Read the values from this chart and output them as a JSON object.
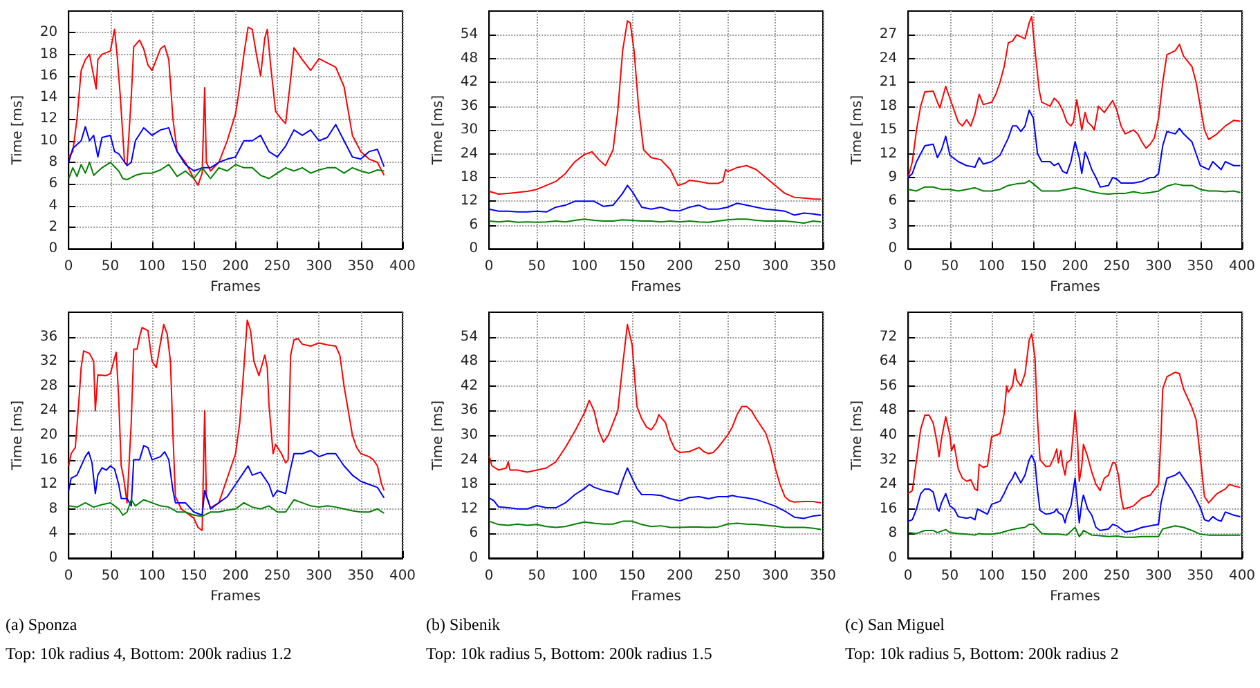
{
  "chart_data": [
    {
      "type": "line",
      "xlabel": "Frames",
      "ylabel": "Time [ms]",
      "xlim": [
        0,
        400
      ],
      "xticks": [
        0,
        50,
        100,
        150,
        200,
        250,
        300,
        350,
        400
      ],
      "ylim": [
        0,
        22
      ],
      "yticks": [
        0,
        2,
        4,
        6,
        8,
        10,
        12,
        14,
        16,
        18,
        20
      ],
      "grid": true,
      "series": [
        {
          "color": "#ff0000",
          "x": [
            0,
            5,
            10,
            15,
            20,
            25,
            30,
            33,
            35,
            40,
            50,
            55,
            58,
            62,
            67,
            70,
            75,
            78,
            85,
            90,
            95,
            100,
            110,
            115,
            120,
            125,
            130,
            140,
            150,
            155,
            160,
            163,
            165,
            170,
            180,
            190,
            200,
            205,
            210,
            215,
            220,
            225,
            230,
            235,
            238,
            242,
            248,
            255,
            260,
            265,
            270,
            280,
            290,
            300,
            310,
            320,
            330,
            340,
            350,
            360,
            370,
            378
          ],
          "values": [
            8.5,
            9,
            12,
            16.5,
            17.5,
            18,
            16,
            14.8,
            17.5,
            18,
            18.3,
            20.3,
            18,
            14,
            8,
            7.8,
            14,
            18.7,
            19.3,
            18.5,
            17,
            16.5,
            18.5,
            18.8,
            17.5,
            12,
            9,
            8,
            6.5,
            5.9,
            7,
            14.9,
            8,
            7.2,
            8,
            10,
            12.5,
            15,
            18,
            20.5,
            20.3,
            18,
            16,
            19.5,
            20.3,
            17,
            12.7,
            12,
            11.6,
            15,
            18.6,
            17.5,
            16.5,
            17.6,
            17.2,
            16.8,
            15,
            10.5,
            9,
            8.3,
            8,
            6.8
          ]
        },
        {
          "color": "#0000ff",
          "x": [
            0,
            5,
            15,
            20,
            25,
            30,
            35,
            40,
            50,
            55,
            60,
            70,
            75,
            80,
            90,
            100,
            110,
            120,
            125,
            130,
            140,
            150,
            160,
            170,
            180,
            190,
            200,
            210,
            220,
            230,
            240,
            250,
            260,
            270,
            280,
            290,
            300,
            310,
            320,
            330,
            340,
            350,
            360,
            370,
            378
          ],
          "values": [
            8,
            9.3,
            10,
            11.3,
            10,
            10.5,
            8.5,
            10.3,
            10.5,
            9,
            8.8,
            7.7,
            8,
            10,
            11.2,
            10.5,
            11,
            11.2,
            10,
            9,
            7.8,
            7.2,
            7.5,
            7.5,
            8,
            8.3,
            8.5,
            10,
            10,
            10.5,
            9,
            8.5,
            9.5,
            11,
            10.5,
            11,
            10,
            10.3,
            11.5,
            10,
            8.5,
            8.3,
            9,
            9.2,
            7.6
          ]
        },
        {
          "color": "#008000",
          "x": [
            0,
            5,
            10,
            15,
            20,
            25,
            30,
            40,
            50,
            60,
            65,
            70,
            80,
            90,
            100,
            110,
            120,
            130,
            140,
            150,
            160,
            170,
            180,
            190,
            200,
            210,
            220,
            230,
            240,
            250,
            260,
            270,
            280,
            290,
            300,
            310,
            320,
            330,
            340,
            350,
            360,
            370,
            378
          ],
          "values": [
            6.5,
            7.5,
            6.7,
            7.8,
            7,
            8,
            6.8,
            7.5,
            8,
            7.2,
            6.5,
            6.4,
            6.8,
            7,
            7,
            7.3,
            7.8,
            6.7,
            7.2,
            6.5,
            7.5,
            6.5,
            7.5,
            7.2,
            7.8,
            7.5,
            7.5,
            6.8,
            6.5,
            7,
            7.5,
            7.2,
            7.5,
            7,
            7.3,
            7.5,
            7.5,
            7,
            7.5,
            7.2,
            7,
            7.3,
            7.2
          ]
        }
      ]
    },
    {
      "type": "line",
      "xlabel": "Frames",
      "ylabel": "Time [ms]",
      "xlim": [
        0,
        350
      ],
      "xticks": [
        0,
        50,
        100,
        150,
        200,
        250,
        300,
        350
      ],
      "ylim": [
        0,
        60
      ],
      "yticks": [
        0,
        6,
        12,
        18,
        24,
        30,
        36,
        42,
        48,
        54
      ],
      "grid": true,
      "series": [
        {
          "color": "#ff0000",
          "x": [
            0,
            10,
            20,
            40,
            50,
            60,
            70,
            80,
            90,
            100,
            108,
            115,
            122,
            130,
            135,
            140,
            145,
            148,
            152,
            157,
            162,
            170,
            180,
            190,
            198,
            205,
            210,
            220,
            230,
            240,
            245,
            248,
            250,
            260,
            270,
            280,
            290,
            300,
            310,
            320,
            330,
            340,
            348
          ],
          "values": [
            14.5,
            13.8,
            14,
            14.5,
            15,
            16,
            17,
            19,
            22,
            23.8,
            24.5,
            22.5,
            21,
            25,
            35,
            50,
            57.5,
            57,
            50,
            35,
            25,
            23,
            22.5,
            20,
            16,
            16.5,
            17.3,
            17,
            16.5,
            16.5,
            17,
            20,
            19.5,
            20.5,
            21,
            20,
            18,
            16,
            14,
            13,
            12.8,
            12.6,
            12.5
          ]
        },
        {
          "color": "#0000ff",
          "x": [
            0,
            10,
            20,
            30,
            40,
            50,
            60,
            70,
            80,
            90,
            100,
            110,
            120,
            130,
            140,
            145,
            150,
            160,
            170,
            180,
            190,
            200,
            210,
            220,
            230,
            240,
            250,
            260,
            270,
            280,
            290,
            300,
            310,
            320,
            330,
            340,
            348
          ],
          "values": [
            10,
            9.5,
            9.5,
            9.3,
            9.3,
            9.5,
            9.3,
            10.5,
            11,
            12,
            12,
            12,
            10.7,
            11,
            14,
            16,
            14.5,
            10.5,
            10,
            10.5,
            9.7,
            9.6,
            10.5,
            11,
            10,
            10,
            10.5,
            11.5,
            11,
            10.5,
            10,
            9.8,
            9.5,
            8.5,
            9,
            8.8,
            8.5
          ]
        },
        {
          "color": "#008000",
          "x": [
            0,
            10,
            20,
            30,
            40,
            50,
            60,
            70,
            80,
            90,
            100,
            110,
            120,
            130,
            140,
            150,
            160,
            170,
            180,
            190,
            200,
            210,
            220,
            230,
            240,
            250,
            260,
            270,
            280,
            290,
            300,
            310,
            320,
            330,
            340,
            348
          ],
          "values": [
            7,
            6.8,
            7,
            6.7,
            6.8,
            6.7,
            6.8,
            7,
            6.8,
            7.2,
            7.5,
            7.2,
            7,
            7,
            7.3,
            7.2,
            7,
            7,
            6.8,
            7,
            6.8,
            7,
            6.8,
            6.7,
            7,
            7.3,
            7.5,
            7.5,
            7.2,
            7,
            7,
            7,
            6.8,
            6.5,
            7,
            6.8
          ]
        }
      ]
    },
    {
      "type": "line",
      "xlabel": "Frames",
      "ylabel": "Time [ms]",
      "xlim": [
        0,
        400
      ],
      "xticks": [
        0,
        50,
        100,
        150,
        200,
        250,
        300,
        350,
        400
      ],
      "ylim": [
        0,
        30
      ],
      "yticks": [
        0,
        3,
        6,
        9,
        12,
        15,
        18,
        21,
        24,
        27
      ],
      "grid": true,
      "series": [
        {
          "color": "#ff0000",
          "x": [
            0,
            5,
            10,
            15,
            20,
            30,
            35,
            38,
            45,
            50,
            55,
            60,
            65,
            70,
            75,
            80,
            85,
            90,
            100,
            105,
            110,
            115,
            120,
            125,
            130,
            140,
            145,
            148,
            152,
            157,
            160,
            170,
            175,
            180,
            185,
            190,
            195,
            198,
            202,
            205,
            208,
            212,
            215,
            220,
            223,
            228,
            235,
            245,
            250,
            255,
            260,
            270,
            275,
            280,
            285,
            290,
            295,
            300,
            305,
            310,
            320,
            325,
            330,
            340,
            345,
            350,
            355,
            360,
            370,
            380,
            390,
            398
          ],
          "values": [
            9,
            11,
            15,
            18,
            19.8,
            19.9,
            18.5,
            17.8,
            20.5,
            19,
            17.5,
            16,
            15.5,
            16.3,
            15.5,
            17,
            19.5,
            18.2,
            18.5,
            19.5,
            21,
            23,
            26,
            26.2,
            27,
            26.5,
            28.5,
            29.3,
            25,
            20,
            18.5,
            18,
            19,
            18.5,
            17.5,
            16,
            15.5,
            16,
            18.8,
            17,
            15,
            17.2,
            16,
            15.5,
            15,
            18,
            17.2,
            18.7,
            17.5,
            15.5,
            14.5,
            15,
            14.5,
            13.5,
            12.7,
            13.2,
            14,
            16.5,
            21,
            24.5,
            25,
            25.8,
            24.3,
            23,
            21,
            18,
            15,
            13.8,
            14.5,
            15.5,
            16.2,
            16.1
          ]
        },
        {
          "color": "#0000ff",
          "x": [
            0,
            5,
            10,
            20,
            30,
            35,
            40,
            45,
            50,
            60,
            70,
            80,
            85,
            90,
            100,
            110,
            120,
            125,
            130,
            135,
            140,
            145,
            150,
            155,
            160,
            170,
            175,
            180,
            185,
            190,
            195,
            200,
            205,
            208,
            212,
            215,
            220,
            225,
            230,
            240,
            245,
            250,
            255,
            260,
            270,
            280,
            290,
            295,
            300,
            305,
            310,
            320,
            325,
            330,
            340,
            345,
            350,
            360,
            365,
            370,
            375,
            380,
            390,
            398
          ],
          "values": [
            9,
            9.5,
            11,
            13,
            13.2,
            11.5,
            12.5,
            14.2,
            11.8,
            11,
            10.5,
            10.3,
            11.5,
            10.7,
            11,
            11.8,
            14,
            15.5,
            15.5,
            14.8,
            15.5,
            17.5,
            16.5,
            12,
            11,
            11,
            10.5,
            10.8,
            9.8,
            9.5,
            11,
            13.5,
            11.5,
            9.5,
            12.2,
            11.5,
            10,
            9,
            7.8,
            8,
            9,
            8.8,
            8.3,
            8.3,
            8.3,
            8.5,
            9,
            9,
            9.5,
            13,
            14.8,
            14.5,
            15.2,
            14.5,
            13.5,
            12,
            10.5,
            10,
            11,
            10.5,
            10,
            11,
            10.5,
            10.5
          ]
        },
        {
          "color": "#008000",
          "x": [
            0,
            10,
            20,
            30,
            40,
            50,
            60,
            70,
            80,
            90,
            100,
            110,
            120,
            130,
            140,
            145,
            150,
            160,
            170,
            180,
            190,
            200,
            210,
            220,
            230,
            240,
            250,
            260,
            270,
            280,
            290,
            300,
            310,
            320,
            330,
            340,
            350,
            360,
            370,
            380,
            390,
            398
          ],
          "values": [
            7.5,
            7.3,
            7.8,
            7.8,
            7.5,
            7.5,
            7.3,
            7.5,
            7.7,
            7.3,
            7.3,
            7.5,
            8,
            8.2,
            8.3,
            8.6,
            8.2,
            7.3,
            7.3,
            7.3,
            7.5,
            7.7,
            7.5,
            7.2,
            7,
            6.9,
            7,
            7,
            7.2,
            7,
            7.1,
            7.3,
            7.9,
            8.2,
            8,
            8,
            7.5,
            7.3,
            7.3,
            7.2,
            7.3,
            7.1
          ]
        }
      ]
    },
    {
      "type": "line",
      "xlabel": "Frames",
      "ylabel": "Time [ms]",
      "xlim": [
        0,
        400
      ],
      "xticks": [
        0,
        50,
        100,
        150,
        200,
        250,
        300,
        350,
        400
      ],
      "ylim": [
        0,
        40
      ],
      "yticks": [
        0,
        4,
        8,
        12,
        16,
        20,
        24,
        28,
        32,
        36
      ],
      "grid": true,
      "annotations": [
        "(a) Sponza",
        "Top: 10k radius 4, Bottom: 200k radius 1.2"
      ],
      "series": [
        {
          "color": "#ff0000",
          "x": [
            0,
            3,
            8,
            12,
            15,
            18,
            25,
            30,
            32,
            35,
            45,
            50,
            55,
            57,
            60,
            63,
            66,
            70,
            75,
            78,
            82,
            85,
            88,
            95,
            100,
            105,
            110,
            114,
            118,
            122,
            125,
            128,
            135,
            150,
            155,
            160,
            163,
            165,
            170,
            180,
            190,
            200,
            205,
            210,
            214,
            218,
            222,
            228,
            235,
            238,
            240,
            245,
            248,
            255,
            260,
            263,
            266,
            270,
            275,
            280,
            290,
            300,
            310,
            320,
            325,
            330,
            335,
            340,
            345,
            350,
            360,
            365,
            370,
            375,
            378
          ],
          "values": [
            15,
            17,
            18,
            25,
            31,
            33.7,
            33.3,
            32,
            24,
            29.8,
            29.7,
            30,
            32.5,
            33.5,
            26,
            15,
            13,
            9,
            22,
            34,
            34,
            36,
            37.5,
            37,
            32,
            31,
            35,
            38,
            36.5,
            32,
            20,
            10,
            8,
            6.5,
            5,
            4.5,
            24,
            10,
            8.2,
            9,
            13,
            17,
            22,
            31,
            38.7,
            37,
            32,
            29.7,
            33,
            31,
            25,
            17,
            18.5,
            17,
            15.5,
            16,
            33,
            35.5,
            35.7,
            34.8,
            34.5,
            35,
            34.7,
            34.5,
            33,
            28,
            24,
            20,
            18,
            17,
            16.5,
            16,
            15,
            12,
            11
          ]
        },
        {
          "color": "#0000ff",
          "x": [
            0,
            3,
            10,
            20,
            24,
            28,
            32,
            35,
            40,
            45,
            50,
            55,
            60,
            63,
            70,
            75,
            78,
            85,
            90,
            95,
            100,
            110,
            115,
            120,
            125,
            128,
            140,
            150,
            160,
            163,
            168,
            170,
            180,
            190,
            200,
            210,
            215,
            220,
            230,
            240,
            245,
            250,
            260,
            265,
            270,
            280,
            290,
            300,
            310,
            320,
            330,
            340,
            350,
            360,
            370,
            378
          ],
          "values": [
            11,
            13,
            13.5,
            16.5,
            17.3,
            15.5,
            10.5,
            13.5,
            14.7,
            14.3,
            15,
            14.5,
            12,
            9.7,
            9.7,
            8.5,
            16,
            16,
            18.3,
            18,
            16,
            16.5,
            17.3,
            16,
            11,
            9,
            9,
            7.5,
            7,
            11,
            9,
            8,
            9,
            10,
            12,
            14,
            15,
            13.5,
            14,
            12,
            10,
            11,
            10.5,
            14,
            17,
            17,
            17.5,
            16.5,
            17,
            17,
            15,
            13.5,
            12.5,
            12,
            11.5,
            9.8
          ]
        },
        {
          "color": "#008000",
          "x": [
            0,
            10,
            20,
            30,
            40,
            50,
            60,
            65,
            70,
            75,
            80,
            90,
            100,
            110,
            120,
            130,
            140,
            150,
            160,
            170,
            180,
            190,
            200,
            210,
            220,
            230,
            240,
            250,
            260,
            270,
            280,
            290,
            300,
            310,
            320,
            330,
            340,
            350,
            360,
            370,
            378
          ],
          "values": [
            8.5,
            8.3,
            9,
            8.3,
            8.7,
            9,
            8,
            7,
            7.5,
            9.5,
            8.5,
            9.5,
            9,
            8.5,
            8.3,
            7.5,
            7.5,
            7,
            6.8,
            7.5,
            7.5,
            7.8,
            8,
            9,
            8.3,
            8,
            8.5,
            7.5,
            7.5,
            9.5,
            9,
            8.5,
            8.3,
            8.5,
            8.3,
            8,
            7.7,
            7.5,
            7.5,
            8,
            7.3
          ]
        }
      ]
    },
    {
      "type": "line",
      "xlabel": "Frames",
      "ylabel": "Time [ms]",
      "xlim": [
        0,
        350
      ],
      "xticks": [
        0,
        50,
        100,
        150,
        200,
        250,
        300,
        350
      ],
      "ylim": [
        0,
        60
      ],
      "yticks": [
        0,
        6,
        12,
        18,
        24,
        30,
        36,
        42,
        48,
        54
      ],
      "grid": true,
      "annotations": [
        "(b) Sibenik",
        "Top: 10k radius 5, Bottom: 200k radius 1.5"
      ],
      "series": [
        {
          "color": "#ff0000",
          "x": [
            0,
            3,
            10,
            18,
            20,
            22,
            30,
            40,
            50,
            60,
            70,
            80,
            90,
            100,
            105,
            110,
            115,
            120,
            125,
            130,
            135,
            140,
            145,
            150,
            155,
            160,
            165,
            170,
            175,
            178,
            185,
            190,
            195,
            200,
            210,
            220,
            225,
            230,
            235,
            240,
            245,
            250,
            255,
            260,
            265,
            270,
            275,
            280,
            290,
            295,
            300,
            305,
            310,
            315,
            320,
            330,
            340,
            348
          ],
          "values": [
            25,
            22.5,
            21.5,
            22,
            23.5,
            21.5,
            21.5,
            21,
            21.5,
            22,
            23.5,
            27,
            31,
            35.5,
            38.5,
            36,
            31,
            28.3,
            30,
            33,
            36,
            47,
            57,
            52,
            37,
            34,
            32,
            31.3,
            33,
            35,
            33,
            29,
            26.5,
            25.8,
            26,
            27,
            26,
            25.5,
            25.8,
            27,
            28.5,
            30,
            32,
            35,
            37,
            37,
            36,
            34,
            30.5,
            27,
            22,
            18,
            15,
            14,
            13.7,
            13.8,
            13.8,
            13.5
          ]
        },
        {
          "color": "#0000ff",
          "x": [
            0,
            5,
            10,
            20,
            30,
            40,
            50,
            60,
            70,
            80,
            90,
            100,
            105,
            110,
            120,
            130,
            135,
            140,
            145,
            150,
            155,
            160,
            170,
            180,
            190,
            200,
            210,
            220,
            230,
            240,
            250,
            255,
            260,
            270,
            280,
            290,
            300,
            310,
            320,
            330,
            340,
            348
          ],
          "values": [
            14.7,
            14,
            12.5,
            12.3,
            12,
            12,
            12.8,
            12.3,
            12.3,
            13.5,
            15.5,
            17,
            18,
            17.3,
            16.5,
            16,
            15.5,
            19,
            22,
            19.5,
            17,
            15.5,
            15.5,
            15.3,
            14.5,
            14,
            14.8,
            15,
            14.5,
            15,
            15,
            15.3,
            15,
            14.7,
            14.3,
            13.5,
            12.7,
            11.5,
            10,
            9.7,
            10.3,
            10.5
          ]
        },
        {
          "color": "#008000",
          "x": [
            0,
            10,
            20,
            30,
            40,
            50,
            60,
            70,
            80,
            90,
            100,
            110,
            120,
            130,
            140,
            150,
            160,
            170,
            180,
            190,
            200,
            210,
            220,
            230,
            240,
            250,
            260,
            270,
            280,
            290,
            300,
            310,
            320,
            330,
            340,
            348
          ],
          "values": [
            9,
            8.2,
            8,
            8.3,
            8,
            8.2,
            7.7,
            7.5,
            7.7,
            8.3,
            8.8,
            8.5,
            8.3,
            8.3,
            9,
            9,
            8.2,
            7.7,
            7.9,
            7.5,
            7.5,
            7.6,
            7.6,
            7.5,
            7.6,
            8.3,
            8.5,
            8.3,
            8.2,
            8,
            7.8,
            7.5,
            7.5,
            7.5,
            7.3,
            7
          ]
        }
      ]
    },
    {
      "type": "line",
      "xlabel": "Frames",
      "ylabel": "Time [ms]",
      "xlim": [
        0,
        400
      ],
      "xticks": [
        0,
        50,
        100,
        150,
        200,
        250,
        300,
        350,
        400
      ],
      "ylim": [
        0,
        80
      ],
      "yticks": [
        0,
        8,
        16,
        24,
        32,
        40,
        48,
        56,
        64,
        72
      ],
      "grid": true,
      "annotations": [
        "(c) San Miguel",
        "Top: 10k radius 5, Bottom: 200k radius 2"
      ],
      "series": [
        {
          "color": "#ff0000",
          "x": [
            0,
            5,
            10,
            15,
            20,
            25,
            30,
            35,
            37,
            40,
            45,
            50,
            52,
            55,
            60,
            65,
            70,
            75,
            80,
            83,
            85,
            90,
            95,
            100,
            105,
            110,
            115,
            118,
            120,
            125,
            128,
            130,
            135,
            140,
            145,
            148,
            152,
            155,
            158,
            165,
            170,
            175,
            178,
            180,
            183,
            185,
            188,
            190,
            195,
            200,
            203,
            205,
            208,
            210,
            215,
            220,
            225,
            230,
            235,
            240,
            245,
            248,
            252,
            255,
            258,
            265,
            270,
            280,
            290,
            300,
            303,
            305,
            310,
            320,
            325,
            330,
            340,
            345,
            350,
            355,
            360,
            365,
            370,
            380,
            385,
            390,
            398
          ],
          "values": [
            21,
            22,
            32,
            42,
            46.5,
            46.5,
            44,
            37,
            33,
            39,
            46,
            40,
            35,
            37,
            29,
            26,
            25,
            25.5,
            22.5,
            22,
            30.5,
            29.5,
            30,
            39.5,
            40,
            40.5,
            47,
            56,
            54,
            56,
            61.5,
            58,
            56,
            60,
            71,
            73,
            65,
            45,
            32,
            29.8,
            30,
            33,
            35.5,
            31,
            35,
            30.5,
            27,
            31,
            32,
            48,
            38,
            25,
            30,
            37,
            33,
            28,
            24,
            22,
            26,
            27,
            31,
            31,
            27,
            20,
            16,
            16.5,
            17,
            19.5,
            20.5,
            24,
            40,
            55,
            59,
            60.5,
            60,
            55,
            49,
            45,
            33,
            20,
            18,
            19.5,
            21,
            22.5,
            24,
            23.5,
            23
          ]
        },
        {
          "color": "#0000ff",
          "x": [
            0,
            5,
            10,
            15,
            20,
            25,
            30,
            35,
            37,
            40,
            45,
            50,
            55,
            60,
            70,
            75,
            80,
            83,
            90,
            95,
            100,
            110,
            115,
            120,
            125,
            128,
            135,
            140,
            145,
            148,
            152,
            155,
            158,
            165,
            170,
            175,
            178,
            180,
            185,
            188,
            190,
            195,
            200,
            205,
            208,
            210,
            215,
            220,
            225,
            230,
            240,
            245,
            250,
            255,
            260,
            270,
            280,
            290,
            300,
            303,
            310,
            320,
            325,
            330,
            340,
            350,
            355,
            360,
            365,
            370,
            375,
            380,
            390,
            398
          ],
          "values": [
            12,
            12.5,
            16,
            21,
            22.5,
            22.5,
            21.5,
            16,
            15.3,
            18,
            21,
            17,
            16,
            13.5,
            13,
            13.3,
            12.5,
            16,
            15,
            14.3,
            17.5,
            18.5,
            21,
            24,
            26,
            28,
            24.5,
            27,
            32,
            33.5,
            31,
            22,
            15.5,
            14.3,
            14.5,
            15,
            16,
            14.8,
            14,
            11.5,
            14,
            17,
            26,
            11.5,
            18,
            20.5,
            16,
            14,
            10,
            9,
            9.5,
            11,
            10.5,
            9.5,
            8.5,
            9,
            10,
            10.5,
            11,
            18,
            26,
            27,
            28,
            26,
            22,
            16.5,
            12.5,
            12,
            13.5,
            12.5,
            12,
            15,
            14,
            13.5
          ]
        },
        {
          "color": "#008000",
          "x": [
            0,
            10,
            20,
            30,
            35,
            45,
            50,
            60,
            70,
            80,
            85,
            90,
            100,
            110,
            120,
            130,
            140,
            145,
            150,
            155,
            160,
            170,
            180,
            190,
            200,
            205,
            208,
            210,
            220,
            230,
            240,
            250,
            260,
            270,
            280,
            290,
            300,
            305,
            320,
            330,
            340,
            350,
            360,
            370,
            380,
            390,
            398
          ],
          "values": [
            8.3,
            8,
            9,
            9,
            8.3,
            9.3,
            8.3,
            8,
            7.8,
            7.5,
            8,
            7.8,
            7.8,
            8.2,
            9,
            9.6,
            10,
            11,
            11,
            9.5,
            8,
            7.8,
            7.8,
            7.5,
            10,
            7,
            8,
            9,
            7.5,
            7.3,
            7,
            7.2,
            6.8,
            6.8,
            7,
            7,
            7,
            9.5,
            10.5,
            10,
            9,
            7.8,
            7.5,
            7.5,
            7.5,
            7.5,
            7.5
          ]
        }
      ]
    }
  ]
}
